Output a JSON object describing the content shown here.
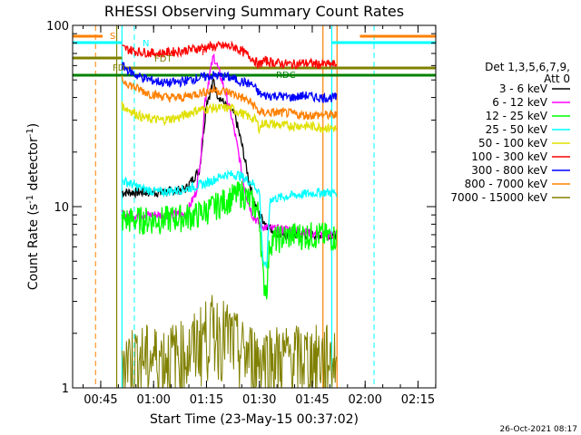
{
  "chart_data": {
    "type": "line",
    "title": "RHESSI Observing Summary Count Rates",
    "xlabel": "Start Time (23-May-15 00:37:02)",
    "ylabel_main": "Count Rate (s",
    "ylabel_sup": "-1",
    "ylabel_end": " detector",
    "ylabel_close": ")",
    "x_unit": "minutes after 00:37:02",
    "xlim": [
      0,
      103
    ],
    "ylim": [
      1,
      100
    ],
    "yscale": "log",
    "x_ticks": [
      {
        "label": "00:45",
        "value": 7.97
      },
      {
        "label": "01:00",
        "value": 22.97
      },
      {
        "label": "01:15",
        "value": 37.97
      },
      {
        "label": "01:30",
        "value": 52.97
      },
      {
        "label": "01:45",
        "value": 67.97
      },
      {
        "label": "02:00",
        "value": 82.97
      },
      {
        "label": "02:15",
        "value": 97.97
      }
    ],
    "y_ticks": [
      {
        "label": "100",
        "value": 100
      },
      {
        "label": "10",
        "value": 10
      },
      {
        "label": "1",
        "value": 1
      }
    ],
    "legend": {
      "position": "right",
      "header": [
        "Det 1,3,5,6,7,9,",
        "Att 0"
      ]
    },
    "series": [
      {
        "name": "3 - 6 keV",
        "color": "#000000",
        "values": [
          [
            14,
            12
          ],
          [
            25,
            12
          ],
          [
            32,
            12.5
          ],
          [
            36,
            16
          ],
          [
            37.5,
            30
          ],
          [
            38,
            38
          ],
          [
            39,
            42
          ],
          [
            40,
            50
          ],
          [
            41,
            42
          ],
          [
            43,
            37
          ],
          [
            46,
            32
          ],
          [
            48,
            22
          ],
          [
            50,
            14
          ],
          [
            51,
            11.5
          ],
          [
            52,
            10
          ],
          [
            53,
            9
          ],
          [
            55,
            8
          ],
          [
            58,
            7
          ],
          [
            62,
            7
          ],
          [
            70,
            7
          ],
          [
            75,
            7
          ]
        ]
      },
      {
        "name": "6 - 12 keV",
        "color": "#ff00ff",
        "values": [
          [
            14,
            9
          ],
          [
            25,
            9
          ],
          [
            32,
            9
          ],
          [
            35,
            12
          ],
          [
            36.5,
            20
          ],
          [
            37.5,
            38
          ],
          [
            39,
            55
          ],
          [
            40,
            68
          ],
          [
            41,
            60
          ],
          [
            43,
            45
          ],
          [
            45,
            32
          ],
          [
            47,
            20
          ],
          [
            49,
            12
          ],
          [
            51,
            9
          ],
          [
            53,
            8
          ],
          [
            56,
            7.5
          ],
          [
            62,
            7.5
          ],
          [
            70,
            7
          ],
          [
            75,
            7
          ]
        ]
      },
      {
        "name": "12 - 25 keV",
        "color": "#00ff00",
        "values": [
          [
            14,
            8.5
          ],
          [
            25,
            8.5
          ],
          [
            35,
            9
          ],
          [
            40,
            10
          ],
          [
            44,
            11
          ],
          [
            48,
            12
          ],
          [
            51,
            10.5
          ],
          [
            53,
            9
          ],
          [
            54,
            4
          ],
          [
            55,
            3.5
          ],
          [
            56,
            6.5
          ],
          [
            62,
            7
          ],
          [
            70,
            7
          ],
          [
            75,
            6.8
          ]
        ]
      },
      {
        "name": "25 - 50 keV",
        "color": "#00ffff",
        "values": [
          [
            14,
            14
          ],
          [
            20,
            12.5
          ],
          [
            25,
            12
          ],
          [
            32,
            12.5
          ],
          [
            38,
            13.5
          ],
          [
            43,
            15
          ],
          [
            47,
            15
          ],
          [
            51,
            13.5
          ],
          [
            53,
            12
          ],
          [
            54,
            5
          ],
          [
            55,
            4.5
          ],
          [
            56,
            11
          ],
          [
            62,
            11.5
          ],
          [
            70,
            12
          ],
          [
            75,
            12
          ]
        ]
      },
      {
        "name": "50 - 100 keV",
        "color": "#e0e000",
        "values": [
          [
            14,
            36
          ],
          [
            20,
            31
          ],
          [
            25,
            30
          ],
          [
            30,
            31
          ],
          [
            35,
            34
          ],
          [
            40,
            35
          ],
          [
            45,
            35
          ],
          [
            49,
            32
          ],
          [
            52,
            30
          ],
          [
            53,
            27
          ],
          [
            54,
            29
          ],
          [
            60,
            28
          ],
          [
            65,
            28
          ],
          [
            70,
            27.5
          ],
          [
            75,
            27
          ]
        ]
      },
      {
        "name": "100 - 300 keV",
        "color": "#ff0000",
        "values": [
          [
            14,
            75
          ],
          [
            18,
            72
          ],
          [
            24,
            70
          ],
          [
            30,
            72
          ],
          [
            34,
            74
          ],
          [
            38,
            76
          ],
          [
            43,
            77
          ],
          [
            46,
            76
          ],
          [
            48,
            72
          ],
          [
            51,
            66
          ],
          [
            53,
            60
          ],
          [
            54,
            64
          ],
          [
            58,
            62
          ],
          [
            62,
            61
          ],
          [
            66,
            62
          ],
          [
            70,
            61
          ],
          [
            75,
            61
          ]
        ]
      },
      {
        "name": "300 - 800 keV",
        "color": "#0000ff",
        "values": [
          [
            14,
            60
          ],
          [
            18,
            53
          ],
          [
            22,
            50
          ],
          [
            27,
            48
          ],
          [
            31,
            49
          ],
          [
            35,
            51
          ],
          [
            40,
            53
          ],
          [
            44,
            52
          ],
          [
            48,
            49
          ],
          [
            51,
            47
          ],
          [
            53,
            42
          ],
          [
            54,
            41
          ],
          [
            58,
            41
          ],
          [
            62,
            40
          ],
          [
            66,
            41
          ],
          [
            70,
            40
          ],
          [
            75,
            40
          ]
        ]
      },
      {
        "name": "800 - 7000 keV",
        "color": "#ff8000",
        "values": [
          [
            14,
            50
          ],
          [
            18,
            45
          ],
          [
            22,
            42
          ],
          [
            27,
            40
          ],
          [
            31,
            40
          ],
          [
            35,
            42
          ],
          [
            40,
            44
          ],
          [
            44,
            43
          ],
          [
            48,
            40
          ],
          [
            51,
            37
          ],
          [
            53,
            33
          ],
          [
            55,
            33
          ],
          [
            60,
            33
          ],
          [
            65,
            32
          ],
          [
            70,
            32
          ],
          [
            75,
            32
          ]
        ]
      },
      {
        "name": "7000 - 15000 keV",
        "color": "#808000",
        "values": [
          [
            14,
            1.5
          ],
          [
            25,
            1.5
          ],
          [
            33,
            1.6
          ],
          [
            37,
            2
          ],
          [
            40,
            2.2
          ],
          [
            44,
            2
          ],
          [
            48,
            1.6
          ],
          [
            52,
            1.5
          ],
          [
            60,
            1.5
          ],
          [
            70,
            1.5
          ],
          [
            75,
            1.5
          ]
        ]
      }
    ],
    "annotations": [
      {
        "label": "S",
        "color": "#ff8000"
      },
      {
        "label": "N",
        "color": "#00ffff"
      },
      {
        "label": "F",
        "color": "#ff0000"
      },
      {
        "label": "FD",
        "color": "#808000"
      },
      {
        "label": "FDT",
        "color": "#808000"
      },
      {
        "label": "RDC",
        "color": "#008000"
      }
    ]
  },
  "footer": {
    "timestamp": "26-Oct-2021 08:17"
  }
}
